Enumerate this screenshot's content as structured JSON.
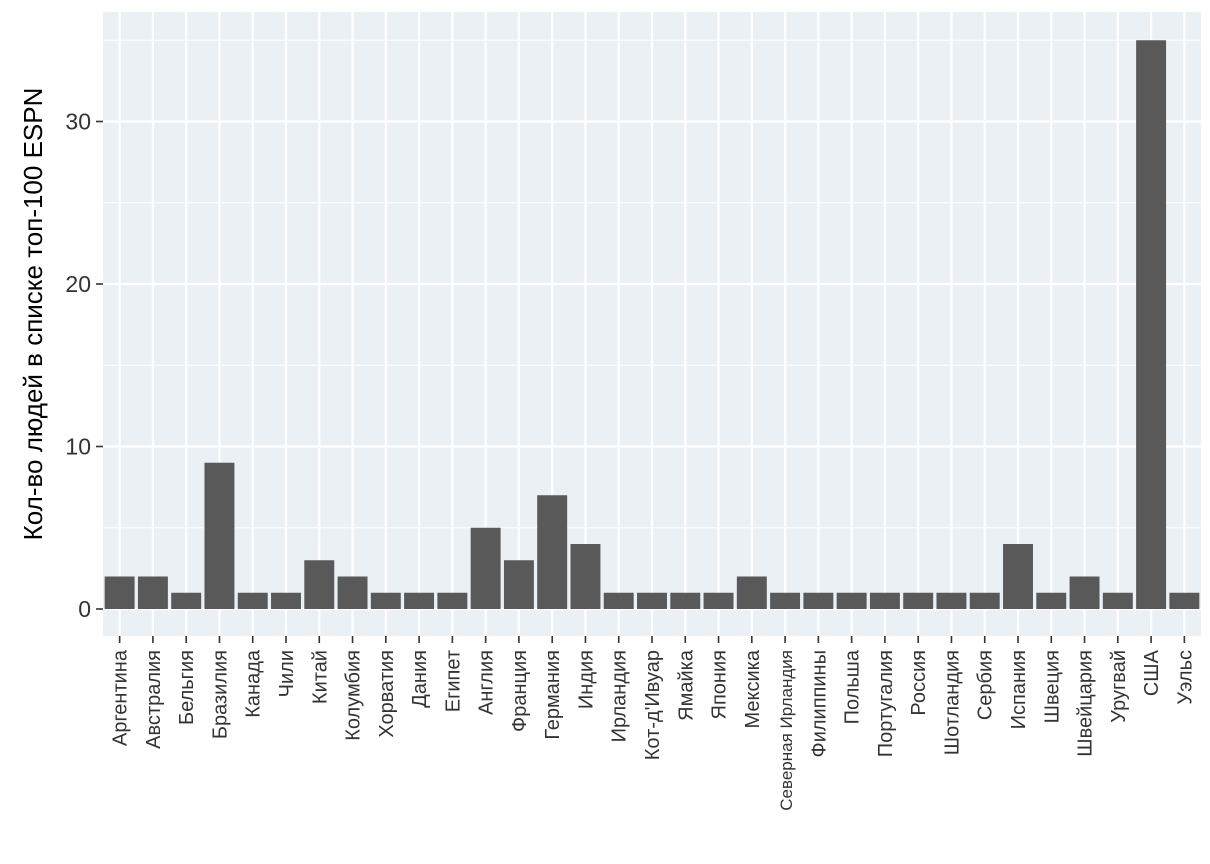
{
  "chart_data": {
    "type": "bar",
    "title": "",
    "xlabel": "",
    "ylabel": "Кол-во людей в списке топ-100 ESPN",
    "ylim": [
      0,
      35
    ],
    "yticks": [
      0,
      10,
      20,
      30
    ],
    "grid": true,
    "categories": [
      "Аргентина",
      "Австралия",
      "Бельгия",
      "Бразилия",
      "Канада",
      "Чили",
      "Китай",
      "Колумбия",
      "Хорватия",
      "Дания",
      "Египет",
      "Англия",
      "Франция",
      "Германия",
      "Индия",
      "Ирландия",
      "Кот-д'Ивуар",
      "Ямайка",
      "Япония",
      "Мексика",
      "Северная Ирландия",
      "Филиппины",
      "Польша",
      "Португалия",
      "Россия",
      "Шотландия",
      "Сербия",
      "Испания",
      "Швеция",
      "Швейцария",
      "Уругвай",
      "США",
      "Уэльс"
    ],
    "values": [
      2,
      2,
      1,
      9,
      1,
      1,
      3,
      2,
      1,
      1,
      1,
      5,
      3,
      7,
      4,
      1,
      1,
      1,
      1,
      2,
      1,
      1,
      1,
      1,
      1,
      1,
      1,
      4,
      1,
      2,
      1,
      35,
      1
    ],
    "colors": {
      "panel": "#EBF0F5",
      "grid_major": "#FFFFFF",
      "bar": "#595959",
      "text": "#333333"
    }
  }
}
